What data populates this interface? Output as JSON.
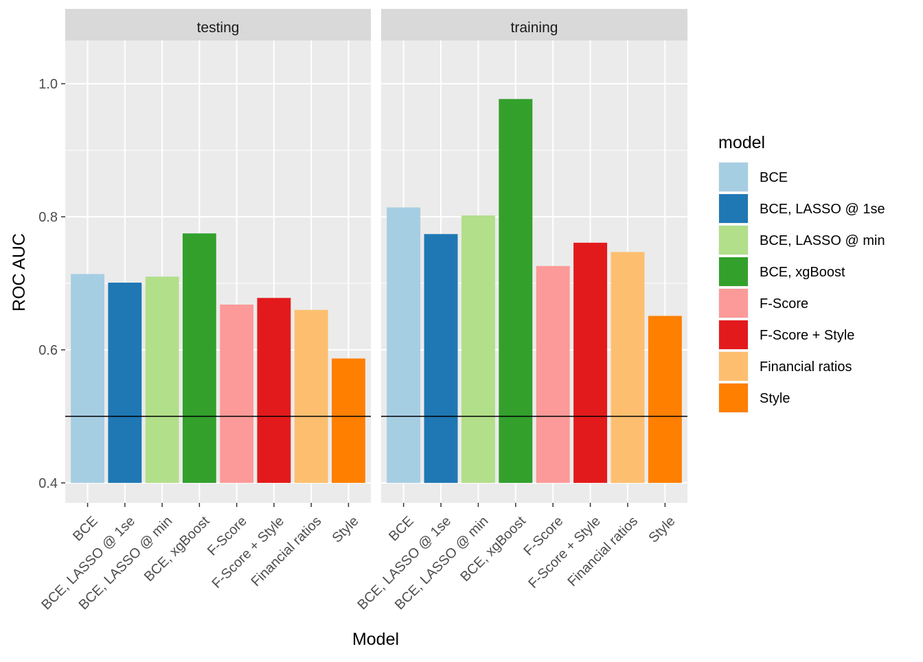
{
  "chart_data": {
    "type": "bar",
    "facet_by": "split",
    "facets": [
      "testing",
      "training"
    ],
    "categories": [
      "BCE",
      "BCE, LASSO @ 1se",
      "BCE, LASSO @ min",
      "BCE, xgBoost",
      "F-Score",
      "F-Score + Style",
      "Financial ratios",
      "Style"
    ],
    "values": {
      "testing": [
        0.714,
        0.701,
        0.71,
        0.775,
        0.668,
        0.678,
        0.66,
        0.587
      ],
      "training": [
        0.814,
        0.774,
        0.802,
        0.977,
        0.726,
        0.761,
        0.747,
        0.651
      ]
    },
    "colors": [
      "#a6cee3",
      "#1f78b4",
      "#b2df8a",
      "#33a02c",
      "#fb9a99",
      "#e31a1c",
      "#fdbf6f",
      "#ff7f00"
    ],
    "xlabel": "Model",
    "ylabel": "ROC AUC",
    "ylim": [
      0.37,
      1.065
    ],
    "yticks": [
      0.4,
      0.6,
      0.8,
      1.0
    ],
    "ytick_labels": [
      "0.4",
      "0.6",
      "0.8",
      "1.0"
    ],
    "bar_base": 0.4,
    "reference_line": 0.5,
    "grid": true,
    "legend": {
      "title": "model",
      "placement": "right",
      "entries": [
        "BCE",
        "BCE, LASSO @ 1se",
        "BCE, LASSO @ min",
        "BCE, xgBoost",
        "F-Score",
        "F-Score + Style",
        "Financial ratios",
        "Style"
      ]
    }
  }
}
